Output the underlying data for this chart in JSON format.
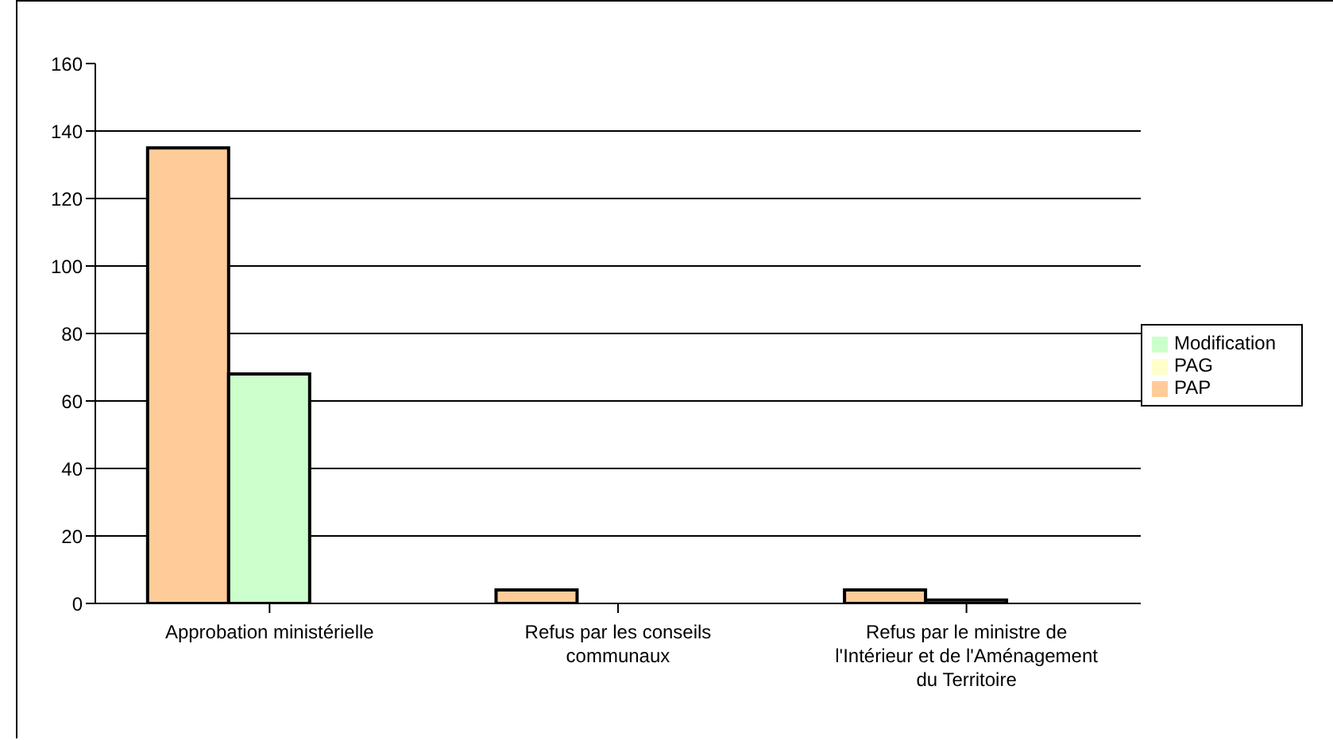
{
  "chart_data": {
    "type": "bar",
    "categories": [
      "Approbation ministérielle",
      "Refus par les conseils communaux",
      "Refus par le ministre de l'Intérieur et de l'Aménagement du Territoire"
    ],
    "series": [
      {
        "name": "PAP",
        "color": "#ffcc99",
        "values": [
          135,
          4,
          4
        ]
      },
      {
        "name": "Modification",
        "color": "#ccffcc",
        "values": [
          68,
          0,
          1
        ]
      },
      {
        "name": "PAG",
        "color": "#ffffcc",
        "values": [
          0,
          0,
          0
        ]
      }
    ],
    "ylim": [
      0,
      160
    ],
    "yticks": [
      0,
      20,
      40,
      60,
      80,
      100,
      120,
      140,
      160
    ],
    "grid": "y",
    "legend": "right"
  }
}
